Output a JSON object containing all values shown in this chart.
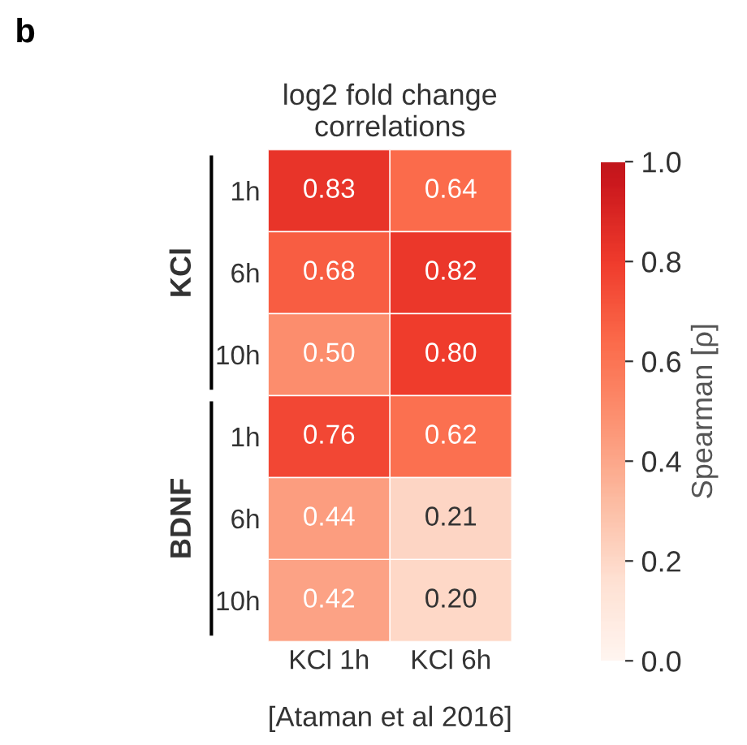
{
  "chart_data": {
    "type": "heatmap",
    "title": "log2 fold change\ncorrelations",
    "categories": [
      "KCl 1h",
      "KCl 6h"
    ],
    "y_categories": [
      "1h",
      "6h",
      "10h",
      "1h",
      "6h",
      "10h"
    ],
    "cells": [
      [
        0.83,
        0.64
      ],
      [
        0.68,
        0.82
      ],
      [
        0.5,
        0.8
      ],
      [
        0.76,
        0.62
      ],
      [
        0.44,
        0.21
      ],
      [
        0.42,
        0.2
      ]
    ],
    "cell_labels": [
      [
        "0.83",
        "0.64"
      ],
      [
        "0.68",
        "0.82"
      ],
      [
        "0.50",
        "0.80"
      ],
      [
        "0.76",
        "0.62"
      ],
      [
        "0.44",
        "0.21"
      ],
      [
        "0.42",
        "0.20"
      ]
    ],
    "clabel": "Spearman [ρ]",
    "clim": [
      0.0,
      1.0
    ],
    "cticks": [
      {
        "value": 0,
        "label": "0.0"
      },
      0.2,
      0.4,
      0.6,
      0.8,
      {
        "value": 1,
        "label": "1.0"
      }
    ],
    "annotations": [
      "b",
      "KCl",
      "BDNF",
      "[Ataman et al 2016]"
    ]
  }
}
